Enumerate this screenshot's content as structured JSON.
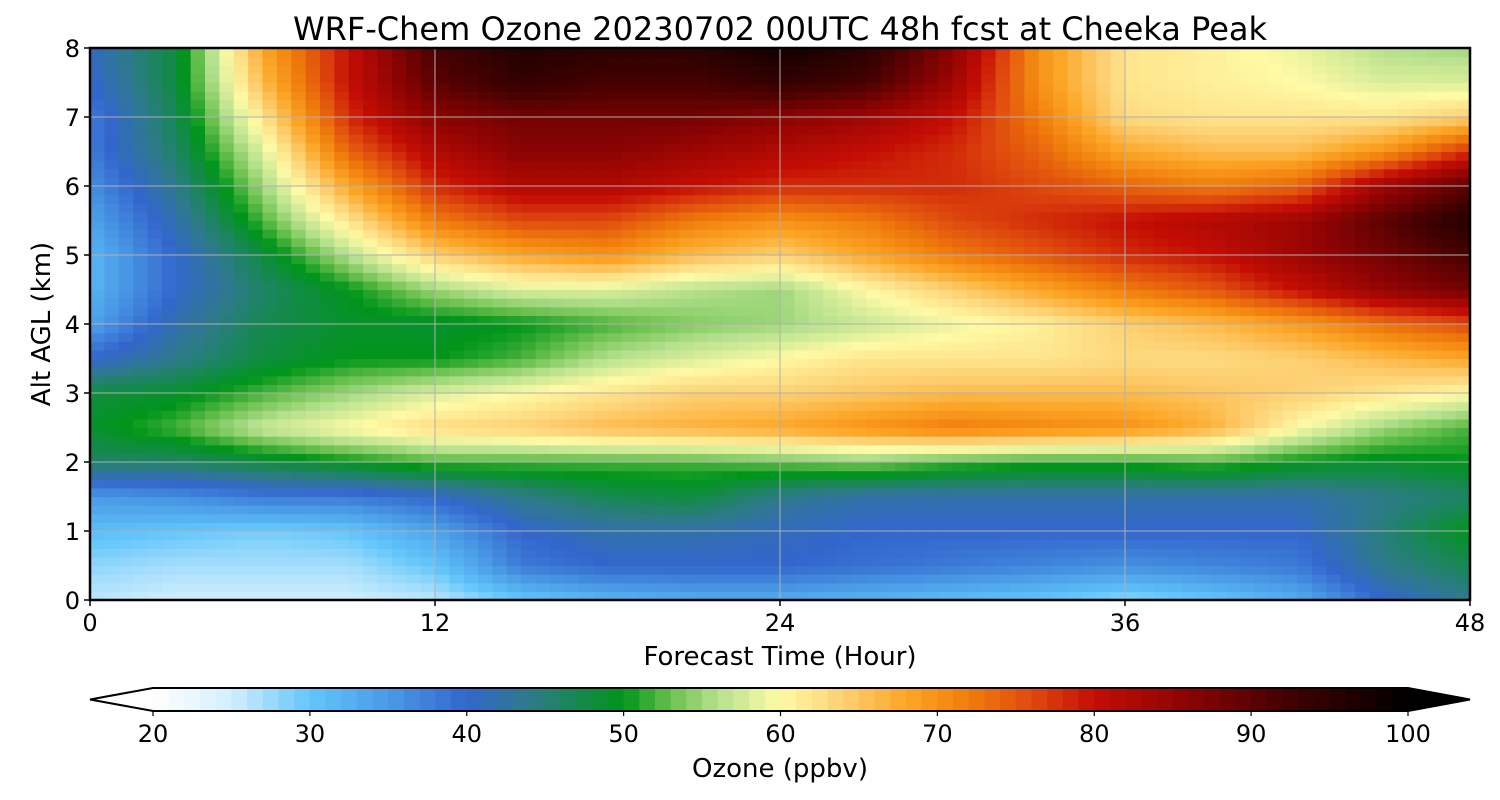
{
  "chart_data": {
    "type": "heatmap",
    "title": "WRF-Chem Ozone  20230702 00UTC 48h fcst at Cheeka Peak",
    "xlabel": "Forecast Time (Hour)",
    "ylabel": "Alt AGL (km)",
    "xlim": [
      0,
      48
    ],
    "ylim": [
      0,
      8
    ],
    "xticks": [
      0,
      12,
      24,
      36,
      48
    ],
    "xtick_labels": [
      "0",
      "12",
      "24",
      "36",
      "48"
    ],
    "yticks": [
      0,
      1,
      2,
      3,
      4,
      5,
      6,
      7,
      8
    ],
    "ytick_labels": [
      "0",
      "1",
      "2",
      "3",
      "4",
      "5",
      "6",
      "7",
      "8"
    ],
    "grid": true,
    "x": [
      0,
      3,
      6,
      9,
      12,
      15,
      18,
      21,
      24,
      27,
      30,
      33,
      36,
      39,
      42,
      45,
      48
    ],
    "y": [
      0,
      0.5,
      1,
      1.5,
      2,
      2.5,
      3,
      3.5,
      4,
      4.5,
      5,
      5.5,
      6,
      6.5,
      7,
      7.5,
      8
    ],
    "z": [
      [
        26,
        25,
        25,
        25,
        26,
        30,
        32,
        33,
        33,
        32,
        31,
        30,
        28,
        30,
        33,
        40,
        44
      ],
      [
        28,
        27,
        27,
        27,
        30,
        38,
        40,
        40,
        40,
        39,
        38,
        37,
        36,
        37,
        38,
        44,
        47
      ],
      [
        31,
        30,
        29,
        30,
        34,
        40,
        42,
        42,
        41,
        40,
        40,
        40,
        40,
        40,
        40,
        45,
        50
      ],
      [
        35,
        36,
        38,
        38,
        40,
        44,
        47,
        48,
        44,
        42,
        42,
        42,
        42,
        42,
        42,
        44,
        46
      ],
      [
        46,
        46,
        48,
        50,
        52,
        52,
        52,
        52,
        53,
        54,
        52,
        51,
        51,
        52,
        50,
        49,
        50
      ],
      [
        49,
        52,
        57,
        60,
        63,
        64,
        66,
        67,
        68,
        70,
        72,
        71,
        70,
        67,
        60,
        55,
        52
      ],
      [
        48,
        49,
        52,
        55,
        58,
        60,
        62,
        64,
        64,
        65,
        66,
        66,
        66,
        65,
        64,
        62,
        60
      ],
      [
        40,
        44,
        48,
        50,
        50,
        52,
        56,
        58,
        60,
        62,
        62,
        62,
        63,
        63,
        64,
        66,
        68
      ],
      [
        34,
        42,
        47,
        49,
        49,
        50,
        52,
        54,
        55,
        57,
        59,
        61,
        64,
        66,
        69,
        73,
        76
      ],
      [
        32,
        40,
        46,
        50,
        55,
        58,
        58,
        56,
        55,
        60,
        64,
        68,
        72,
        75,
        80,
        85,
        88
      ],
      [
        32,
        40,
        48,
        56,
        64,
        68,
        70,
        66,
        64,
        68,
        72,
        75,
        78,
        80,
        84,
        88,
        92
      ],
      [
        34,
        42,
        52,
        62,
        72,
        76,
        76,
        72,
        70,
        72,
        76,
        78,
        80,
        82,
        84,
        90,
        96
      ],
      [
        36,
        44,
        55,
        68,
        78,
        82,
        82,
        80,
        78,
        78,
        78,
        76,
        74,
        72,
        74,
        84,
        90
      ],
      [
        38,
        46,
        58,
        74,
        82,
        86,
        86,
        84,
        82,
        80,
        78,
        74,
        68,
        66,
        66,
        70,
        78
      ],
      [
        38,
        47,
        62,
        78,
        86,
        88,
        88,
        88,
        86,
        84,
        80,
        72,
        63,
        62,
        62,
        62,
        64
      ],
      [
        40,
        48,
        66,
        80,
        90,
        94,
        92,
        92,
        94,
        92,
        84,
        70,
        62,
        61,
        60,
        58,
        58
      ],
      [
        41,
        48,
        68,
        80,
        92,
        96,
        95,
        95,
        98,
        95,
        86,
        70,
        62,
        61,
        59,
        56,
        55
      ]
    ],
    "colorbar": {
      "label": "Ozone  (ppbv)",
      "min": 20,
      "max": 100,
      "ticks": [
        20,
        30,
        40,
        50,
        60,
        70,
        80,
        90,
        100
      ],
      "tick_labels": [
        "20",
        "30",
        "40",
        "50",
        "60",
        "70",
        "80",
        "90",
        "100"
      ],
      "extend": "both",
      "orientation": "horizontal",
      "colors": [
        [
          20,
          "#ffffff"
        ],
        [
          25,
          "#d2eefd"
        ],
        [
          30,
          "#62c6fb"
        ],
        [
          35,
          "#4a9ae6"
        ],
        [
          40,
          "#3366cc"
        ],
        [
          44,
          "#2e7a8a"
        ],
        [
          50,
          "#00951a"
        ],
        [
          53,
          "#6ac04e"
        ],
        [
          56,
          "#b6e18e"
        ],
        [
          60,
          "#fffaa6"
        ],
        [
          64,
          "#fdd073"
        ],
        [
          68,
          "#fca626"
        ],
        [
          72,
          "#f07d0c"
        ],
        [
          76,
          "#df4a0e"
        ],
        [
          80,
          "#c40d04"
        ],
        [
          86,
          "#8a0303"
        ],
        [
          92,
          "#450101"
        ],
        [
          100,
          "#000000"
        ]
      ]
    }
  }
}
